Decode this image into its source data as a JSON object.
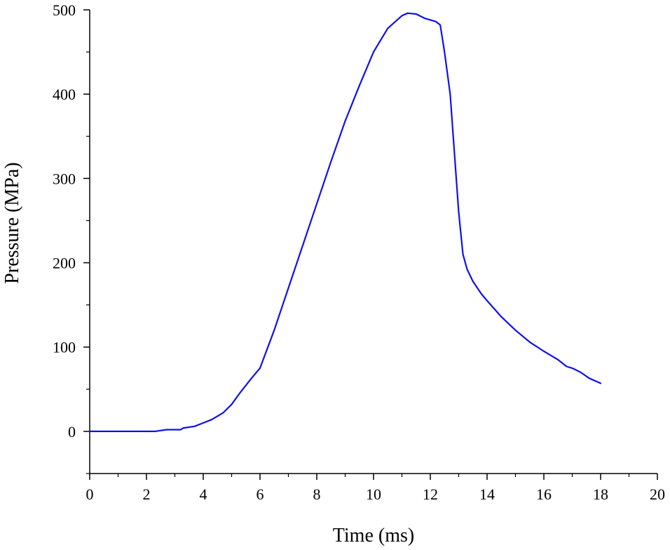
{
  "chart_data": {
    "type": "line",
    "title": "",
    "xlabel": "Time (ms)",
    "ylabel": "Pressure (MPa)",
    "xlim": [
      0,
      20
    ],
    "ylim": [
      -50,
      500
    ],
    "x_ticks": [
      0,
      2,
      4,
      6,
      8,
      10,
      12,
      14,
      16,
      18,
      20
    ],
    "y_ticks": [
      0,
      100,
      200,
      300,
      400,
      500
    ],
    "x_tick_labels": [
      "0",
      "2",
      "4",
      "6",
      "8",
      "10",
      "12",
      "14",
      "16",
      "18",
      "20"
    ],
    "y_tick_labels": [
      "0",
      "100",
      "200",
      "300",
      "400",
      "500"
    ],
    "grid": false,
    "series": [
      {
        "name": "Pressure",
        "color": "#1010ee",
        "x": [
          0,
          1,
          2,
          2.3,
          2.7,
          3.2,
          3.3,
          3.7,
          4.0,
          4.3,
          4.7,
          5.0,
          5.3,
          5.7,
          6.0,
          6.5,
          7.0,
          7.5,
          8.0,
          8.5,
          9.0,
          9.5,
          10.0,
          10.5,
          11.0,
          11.2,
          11.5,
          11.8,
          12.0,
          12.2,
          12.35,
          12.5,
          12.7,
          12.85,
          13.0,
          13.15,
          13.3,
          13.5,
          13.8,
          14.0,
          14.5,
          15.0,
          15.5,
          16.0,
          16.5,
          16.8,
          17.0,
          17.3,
          17.6,
          18.0
        ],
        "values": [
          0,
          0,
          0,
          0,
          2,
          2,
          4,
          6,
          10,
          14,
          22,
          32,
          46,
          63,
          75,
          120,
          170,
          220,
          270,
          320,
          368,
          410,
          450,
          478,
          493,
          496,
          495,
          490,
          488,
          486,
          482,
          450,
          400,
          330,
          260,
          210,
          192,
          178,
          163,
          155,
          136,
          120,
          106,
          95,
          85,
          77,
          75,
          70,
          63,
          57
        ]
      }
    ]
  }
}
